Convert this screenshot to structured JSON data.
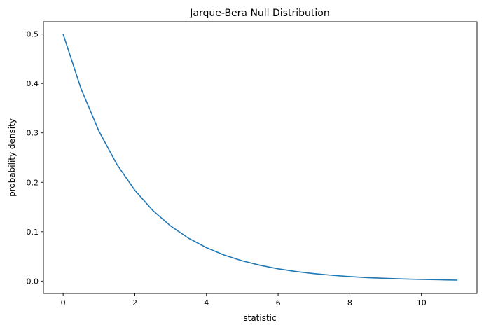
{
  "chart_data": {
    "type": "line",
    "title": "Jarque-Bera Null Distribution",
    "xlabel": "statistic",
    "ylabel": "probability density",
    "xlim": [
      -0.55,
      11.55
    ],
    "ylim": [
      -0.025,
      0.525
    ],
    "xticks": [
      0,
      2,
      4,
      6,
      8,
      10
    ],
    "xtick_labels": [
      "0",
      "2",
      "4",
      "6",
      "8",
      "10"
    ],
    "yticks": [
      0.0,
      0.1,
      0.2,
      0.3,
      0.4,
      0.5
    ],
    "ytick_labels": [
      "0.0",
      "0.1",
      "0.2",
      "0.3",
      "0.4",
      "0.5"
    ],
    "grid": false,
    "color": "#1f77b4",
    "series": [
      {
        "x": [
          0,
          0.5,
          1,
          1.5,
          2,
          2.5,
          3,
          3.5,
          4,
          4.5,
          5,
          5.5,
          6,
          6.5,
          7,
          7.5,
          8,
          8.5,
          9,
          9.5,
          10,
          10.5,
          11
        ],
        "y": [
          0.5,
          0.3894,
          0.3033,
          0.2362,
          0.1839,
          0.1433,
          0.1116,
          0.0869,
          0.0677,
          0.0527,
          0.041,
          0.032,
          0.0249,
          0.0194,
          0.0151,
          0.0118,
          0.0092,
          0.0071,
          0.0056,
          0.0043,
          0.0034,
          0.0026,
          0.002
        ]
      }
    ]
  }
}
